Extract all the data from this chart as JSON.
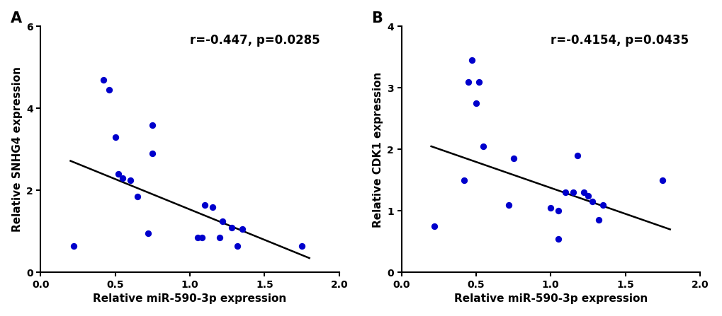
{
  "plot_A": {
    "x": [
      0.22,
      0.42,
      0.46,
      0.5,
      0.52,
      0.55,
      0.6,
      0.65,
      0.72,
      0.75,
      0.75,
      1.05,
      1.08,
      1.1,
      1.15,
      1.2,
      1.22,
      1.28,
      1.32,
      1.35,
      1.75
    ],
    "y": [
      0.65,
      4.7,
      4.45,
      3.3,
      2.4,
      2.3,
      2.25,
      1.85,
      0.95,
      3.6,
      2.9,
      0.85,
      0.85,
      1.65,
      1.6,
      0.85,
      1.25,
      1.1,
      0.65,
      1.05,
      0.65
    ],
    "line_x": [
      0.2,
      1.8
    ],
    "line_y": [
      2.72,
      0.35
    ],
    "r_text": "r=-0.447, p=0.0285",
    "xlabel": "Relative miR-590-3p expression",
    "ylabel": "Relative SNHG4 expression",
    "xlim": [
      0.0,
      2.0
    ],
    "ylim": [
      0.0,
      6.0
    ],
    "xticks": [
      0.0,
      0.5,
      1.0,
      1.5,
      2.0
    ],
    "yticks": [
      0,
      2,
      4,
      6
    ],
    "panel_label": "A"
  },
  "plot_B": {
    "x": [
      0.22,
      0.42,
      0.45,
      0.47,
      0.5,
      0.52,
      0.55,
      0.72,
      0.75,
      1.0,
      1.05,
      1.05,
      1.1,
      1.15,
      1.18,
      1.22,
      1.25,
      1.28,
      1.32,
      1.35,
      1.75
    ],
    "y": [
      0.75,
      1.5,
      3.1,
      3.45,
      2.75,
      3.1,
      2.05,
      1.1,
      1.85,
      1.05,
      0.55,
      1.0,
      1.3,
      1.3,
      1.9,
      1.3,
      1.25,
      1.15,
      0.85,
      1.1,
      1.5
    ],
    "line_x": [
      0.2,
      1.8
    ],
    "line_y": [
      2.05,
      0.7
    ],
    "r_text": "r=-0.4154, p=0.0435",
    "xlabel": "Relative miR-590-3p expression",
    "ylabel": "Relative CDK1 expression",
    "xlim": [
      0.0,
      2.0
    ],
    "ylim": [
      0.0,
      4.0
    ],
    "xticks": [
      0.0,
      0.5,
      1.0,
      1.5,
      2.0
    ],
    "yticks": [
      0,
      1,
      2,
      3,
      4
    ],
    "panel_label": "B"
  },
  "dot_color": "#0000cc",
  "dot_size": 45,
  "line_color": "#000000",
  "line_width": 1.8,
  "font_size_label": 11,
  "font_size_tick": 10,
  "font_size_annot": 12,
  "font_size_panel": 15,
  "background_color": "#ffffff"
}
